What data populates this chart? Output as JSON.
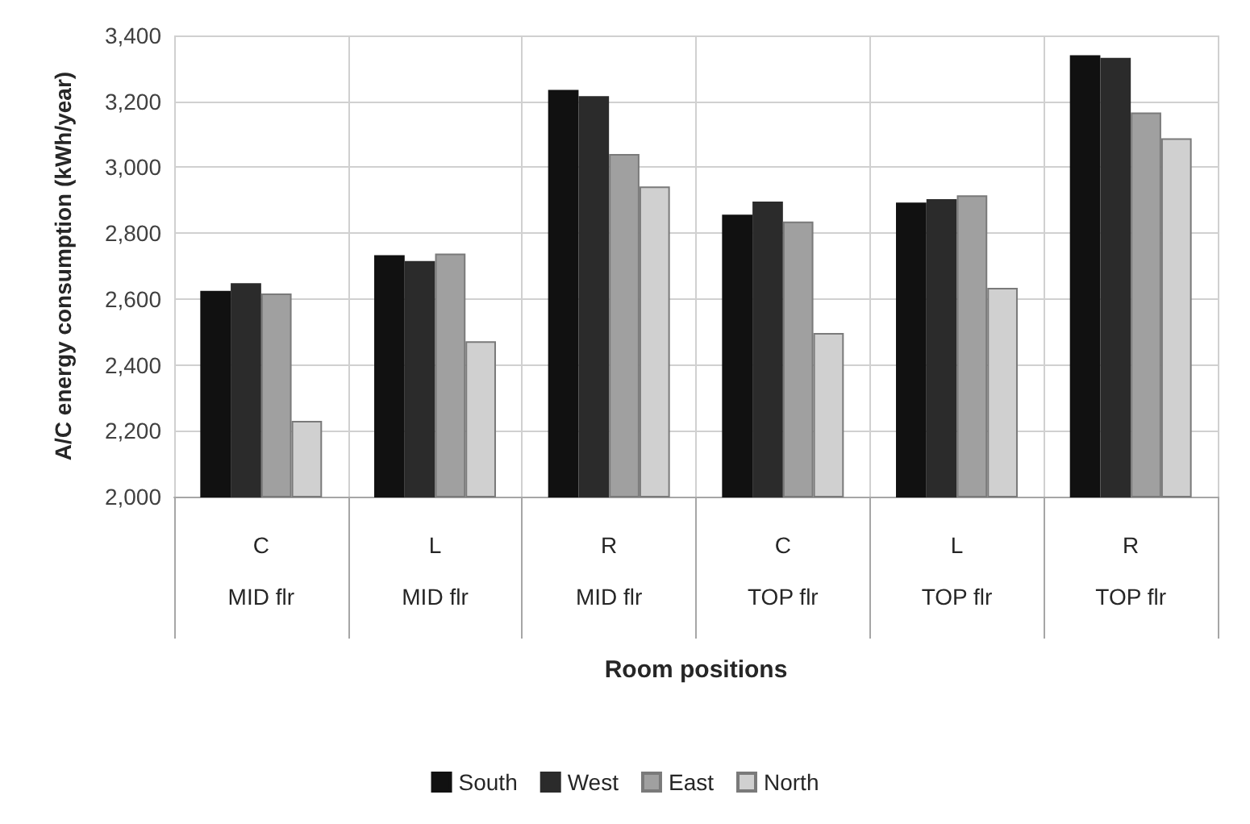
{
  "chart_data": {
    "type": "bar",
    "xlabel": "Room positions",
    "ylabel": "A/C energy consumption (kWh/year)",
    "categories": [
      "C\nMID flr",
      "L\nMID flr",
      "R\nMID flr",
      "C\nTOP flr",
      "L\nTOP flr",
      "R\nTOP flr"
    ],
    "series": [
      {
        "name": "South",
        "color": "#111111",
        "values": [
          2625,
          2733,
          3235,
          2856,
          2893,
          3340
        ]
      },
      {
        "name": "West",
        "color": "#2b2b2b",
        "values": [
          2648,
          2715,
          3216,
          2896,
          2903,
          3332
        ]
      },
      {
        "name": "East",
        "color": "#a0a0a0",
        "values": [
          2617,
          2738,
          3040,
          2835,
          2915,
          3166
        ]
      },
      {
        "name": "North",
        "color": "#d0d0d0",
        "values": [
          2230,
          2472,
          2942,
          2497,
          2634,
          3088
        ]
      }
    ],
    "ylim": [
      2000,
      3400
    ],
    "yticks": [
      {
        "value": 2000,
        "label": "2,000"
      },
      {
        "value": 2200,
        "label": "2,200"
      },
      {
        "value": 2400,
        "label": "2,400"
      },
      {
        "value": 2600,
        "label": "2,600"
      },
      {
        "value": 2800,
        "label": "2,800"
      },
      {
        "value": 3000,
        "label": "3,000"
      },
      {
        "value": 3200,
        "label": "3,200"
      },
      {
        "value": 3400,
        "label": "3,400"
      }
    ],
    "grid": true,
    "legend": "bottom"
  }
}
